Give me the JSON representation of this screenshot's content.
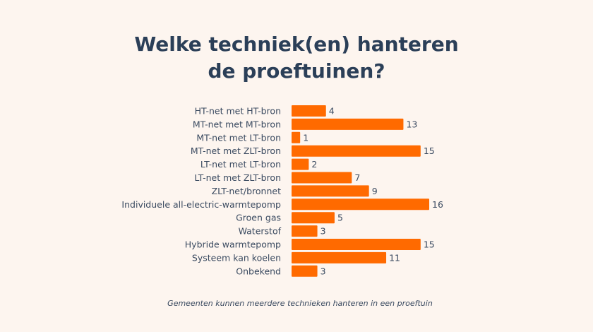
{
  "chart_data": {
    "type": "bar",
    "orientation": "horizontal",
    "title": [
      "Welke techniek(en) hanteren",
      "de proeftuinen?"
    ],
    "categories": [
      "HT-net met HT-bron",
      "MT-net met MT-bron",
      "MT-net met LT-bron",
      "MT-net met ZLT-bron",
      "LT-net met LT-bron",
      "LT-net met ZLT-bron",
      "ZLT-net/bronnet",
      "Individuele all-electric-warmtepomp",
      "Groen gas",
      "Waterstof",
      "Hybride warmtepomp",
      "Systeem kan koelen",
      "Onbekend"
    ],
    "values": [
      4,
      13,
      1,
      15,
      2,
      7,
      9,
      16,
      5,
      3,
      15,
      11,
      3
    ],
    "xlim": [
      0,
      16
    ],
    "grid": false,
    "data_labels": true,
    "bar_color": "#ff6a00",
    "note": "Gemeenten kunnen meerdere technieken hanteren in een proeftuin"
  }
}
